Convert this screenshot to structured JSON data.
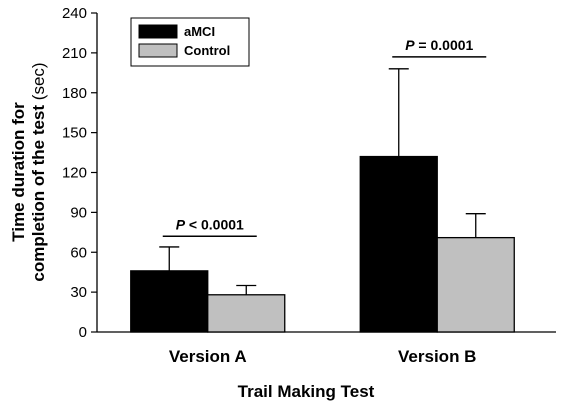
{
  "chart_data": {
    "type": "bar",
    "title": "",
    "xlabel": "Trail Making Test",
    "ylabel": {
      "line1": "Time duration for",
      "line2_main": "completion of the test",
      "line2_unit": " (sec)"
    },
    "categories": [
      "Version A",
      "Version B"
    ],
    "series": [
      {
        "name": "aMCI",
        "values": [
          46,
          132
        ],
        "errors": [
          18,
          66
        ],
        "color": "#000000"
      },
      {
        "name": "Control",
        "values": [
          28,
          71
        ],
        "errors": [
          7,
          18
        ],
        "color": "#c0c0c0"
      }
    ],
    "ylim": [
      0,
      240
    ],
    "yticks": [
      0,
      30,
      60,
      90,
      120,
      150,
      180,
      210,
      240
    ],
    "annotations": [
      {
        "category": "Version A",
        "p_symbol": "P",
        "p_rest": " < 0.0001"
      },
      {
        "category": "Version B",
        "p_symbol": "P",
        "p_rest": " = 0.0001"
      }
    ],
    "legend_position": "top-left",
    "grid": false
  }
}
